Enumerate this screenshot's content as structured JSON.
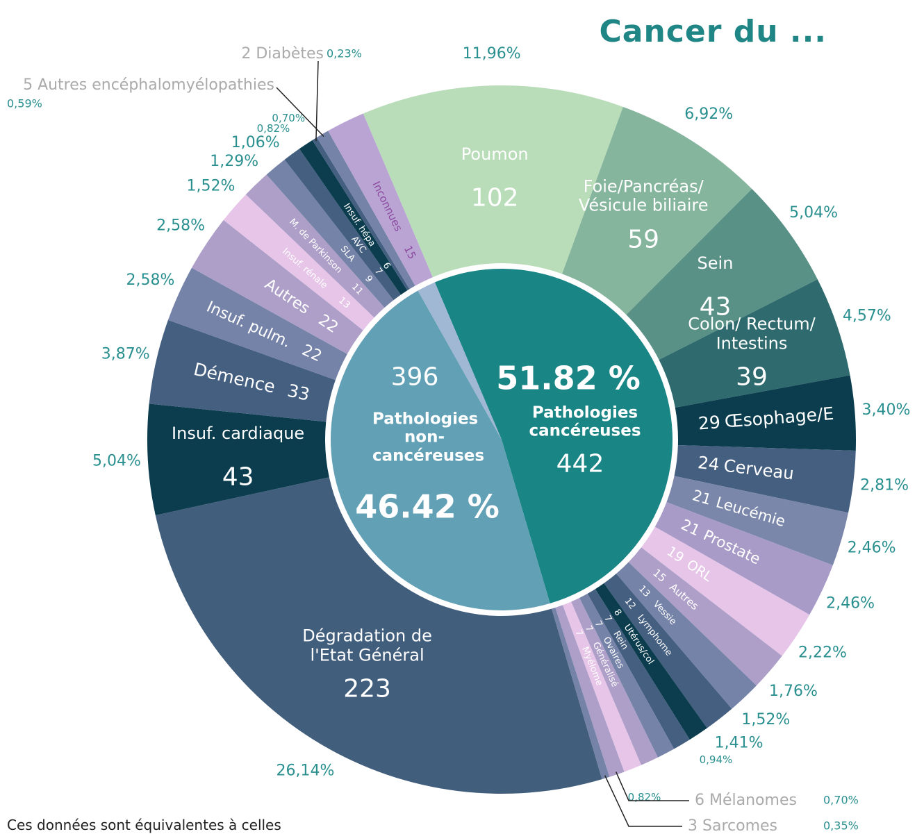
{
  "title": "Cancer du ...",
  "footnote": "Ces données sont équivalentes à celles",
  "chart_data": {
    "type": "sunburst",
    "groups": [
      {
        "name": "Pathologies cancéreuses",
        "value": 442,
        "share_label": "51.82 %",
        "color": "#1a8585",
        "children": [
          {
            "name": "Poumon",
            "value": 102,
            "share_label": "11,96%",
            "color": "#b9dcb9"
          },
          {
            "name": "Foie/Pancréas/ Vésicule biliaire",
            "value": 59,
            "share_label": "6,92%",
            "color": "#86b59e"
          },
          {
            "name": "Sein",
            "value": 43,
            "share_label": "5,04%",
            "color": "#5a9187"
          },
          {
            "name": "Colon/ Rectum/ Intestins",
            "value": 39,
            "share_label": "4,57%",
            "color": "#2f6a6e"
          },
          {
            "name": "Œsophage/E",
            "value": 29,
            "share_label": "3,40%",
            "color": "#0b3d4e"
          },
          {
            "name": "Cerveau",
            "value": 24,
            "share_label": "2,81%",
            "color": "#455f80"
          },
          {
            "name": "Leucémie",
            "value": 21,
            "share_label": "2,46%",
            "color": "#7a87aa"
          },
          {
            "name": "Prostate",
            "value": 21,
            "share_label": "2,46%",
            "color": "#a99bc7"
          },
          {
            "name": "ORL",
            "value": 19,
            "share_label": "2,22%",
            "color": "#e6c5e8"
          },
          {
            "name": "Autres",
            "value": 15,
            "share_label": "1,76%",
            "color": "#ad9fc8"
          },
          {
            "name": "Vessie",
            "value": 13,
            "share_label": "1,52%",
            "color": "#7683a8"
          },
          {
            "name": "Lymphome",
            "value": 12,
            "share_label": "1,41%",
            "color": "#445f80"
          },
          {
            "name": "Utérus/col",
            "value": 8,
            "share_label": "0,94%",
            "color": "#0b3d4e"
          },
          {
            "name": "Rein",
            "value": 7,
            "share_label": null,
            "color": "#455f80"
          },
          {
            "name": "Ovaires",
            "value": 7,
            "share_label": null,
            "color": "#7683a8"
          },
          {
            "name": "Généralisé",
            "value": 7,
            "share_label": null,
            "color": "#ad9fc8"
          },
          {
            "name": "Myélome",
            "value": 7,
            "share_label": "0,82%",
            "color": "#e6c5e8"
          },
          {
            "name": "Mélanomes",
            "value": 6,
            "share_label": "0,70%",
            "color": "#ad9fc8"
          },
          {
            "name": "Sarcomes",
            "value": 3,
            "share_label": "0,35%",
            "color": "#7683a8"
          }
        ]
      },
      {
        "name": "Pathologies non-cancéreuses",
        "value": 396,
        "share_label": "46.42 %",
        "color": "#62a0b5",
        "children": [
          {
            "name": "Dégradation de l'Etat Général",
            "value": 223,
            "share_label": "26,14%",
            "color": "#425e7d"
          },
          {
            "name": "Insuf. cardiaque",
            "value": 43,
            "share_label": "5,04%",
            "color": "#0b3d4e"
          },
          {
            "name": "Démence",
            "value": 33,
            "share_label": "3,87%",
            "color": "#445f80"
          },
          {
            "name": "Insuf. pulm.",
            "value": 22,
            "share_label": "2,58%",
            "color": "#7683a8"
          },
          {
            "name": "Autres",
            "value": 22,
            "share_label": "2,58%",
            "color": "#ad9fc8"
          },
          {
            "name": "Insuf. rénale",
            "value": 13,
            "share_label": "1,52%",
            "color": "#e6c5e8"
          },
          {
            "name": "M. de Parkinson",
            "value": 11,
            "share_label": "1,29%",
            "color": "#ad9fc8"
          },
          {
            "name": "SLA",
            "value": 9,
            "share_label": "1,06%",
            "color": "#7683a8"
          },
          {
            "name": "AVC",
            "value": 7,
            "share_label": "0,82%",
            "color": "#445f80"
          },
          {
            "name": "Insuf. hépa",
            "value": 6,
            "share_label": "0,70%",
            "color": "#0b3d4e"
          },
          {
            "name": "Diabètes",
            "value": 2,
            "share_label": "0,23%",
            "color": "#445f80"
          },
          {
            "name": "Autres encéphalomyélopathies",
            "value": 5,
            "share_label": "0,59%",
            "color": "#7683a8"
          }
        ]
      },
      {
        "color": "#a0b8d4",
        "children": [
          {
            "name": "Inconnues",
            "value": 15,
            "share_label": null,
            "color": "#b9a4d4"
          }
        ]
      }
    ]
  }
}
